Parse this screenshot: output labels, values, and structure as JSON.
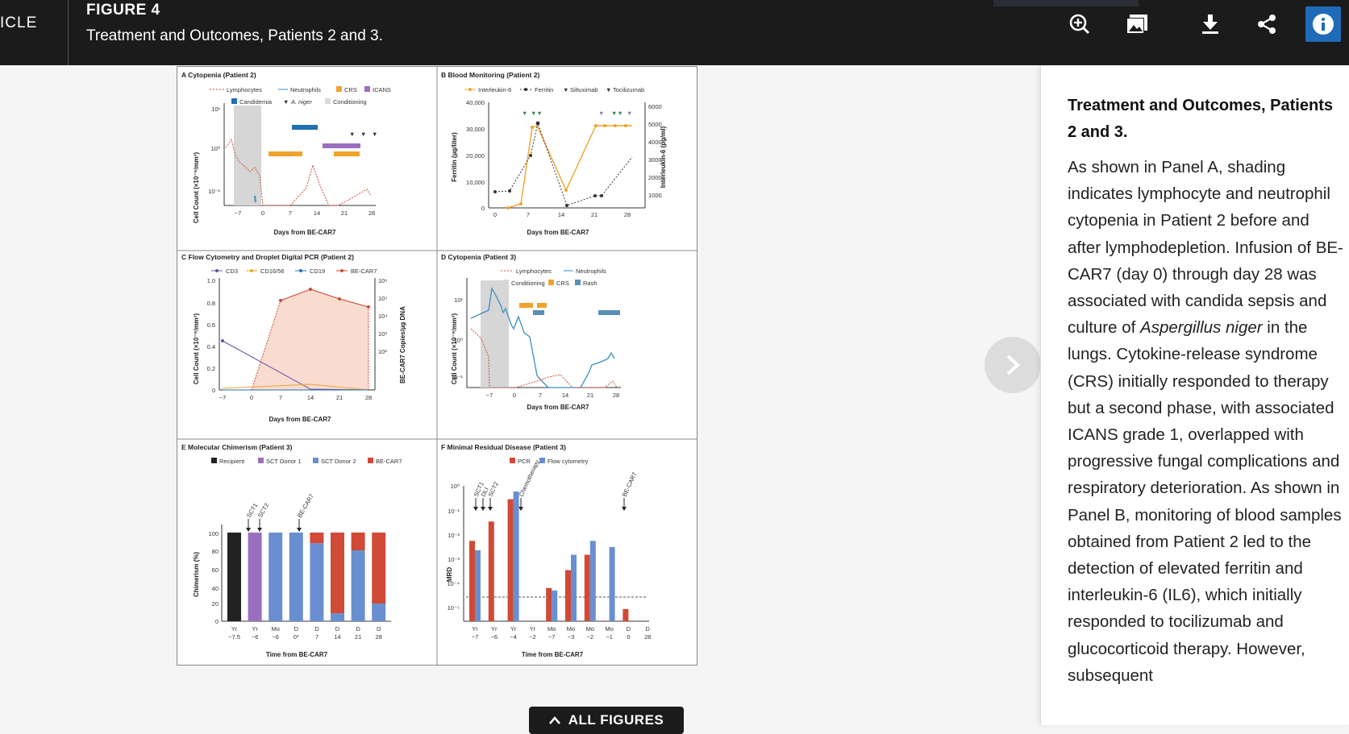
{
  "header": {
    "article_label": "ICLE",
    "figure_label": "FIGURE 4",
    "figure_title": "Treatment and Outcomes, Patients 2 and 3."
  },
  "toolbar": {
    "icons": [
      "zoom-in-icon",
      "image-gallery-icon",
      "download-icon",
      "share-icon",
      "info-icon"
    ]
  },
  "figure": {
    "panelA": {
      "title": "A  Cytopenia (Patient 2)",
      "legend": [
        "Lymphocytes",
        "Neutrophils",
        "CRS",
        "ICANS",
        "Candidemia",
        "A. niger",
        "Conditioning"
      ],
      "ylabel": "Cell Count (×10⁻⁹/mm³)",
      "xlabel": "Days from BE-CAR7",
      "xticks": [
        "−7",
        "0",
        "7",
        "14",
        "21",
        "28"
      ],
      "yticks": [
        "10¹",
        "10⁰",
        "10⁻¹"
      ]
    },
    "panelB": {
      "title": "B  Blood Monitoring (Patient 2)",
      "legend": [
        "Interleukin-6",
        "Ferritin",
        "Siltuximab",
        "Tocilizumab"
      ],
      "ylabel": "Ferritin (µg/liter)",
      "ylabel2": "Interleukin-6 (pg/ml)",
      "xlabel": "Days from BE-CAR7",
      "xticks": [
        "0",
        "7",
        "14",
        "21",
        "28"
      ],
      "yticks": [
        "40,000",
        "30,000",
        "20,000",
        "10,000",
        "0"
      ],
      "yticks2": [
        "6000",
        "5000",
        "4000",
        "3000",
        "2000",
        "1000"
      ]
    },
    "panelC": {
      "title": "C  Flow Cytometry and Droplet Digital PCR (Patient 2)",
      "legend": [
        "CD3",
        "CD16/56",
        "CD19",
        "BE-CAR7"
      ],
      "ylabel": "Cell Count (×10⁻⁹/mm³)",
      "ylabel2": "BE-CAR7 Copies/µg DNA",
      "xlabel": "Days from BE-CAR7",
      "xticks": [
        "−7",
        "0",
        "7",
        "14",
        "21",
        "28"
      ],
      "yticks": [
        "1.0",
        "0.8",
        "0.6",
        "0.4",
        "0.2",
        "0"
      ],
      "yticks2": [
        "10⁶",
        "10⁵",
        "10⁴",
        "10³",
        "10²"
      ]
    },
    "panelD": {
      "title": "D  Cytopenia (Patient 3)",
      "legend": [
        "Lymphocytes",
        "Neutrophils",
        "Conditioning",
        "CRS",
        "Rash"
      ],
      "ylabel": "Cell Count (×10⁻⁹/mm³)",
      "xlabel": "Days from BE-CAR7",
      "xticks": [
        "−7",
        "0",
        "7",
        "14",
        "21",
        "28"
      ],
      "yticks": [
        "10¹",
        "10⁰",
        "10⁻¹"
      ]
    },
    "panelE": {
      "title": "E  Molecular Chimerism (Patient 3)",
      "legend": [
        "Recipient",
        "SCT Donor 1",
        "SCT Donor 2",
        "BE-CAR7"
      ],
      "ylabel": "Chimerism (%)",
      "xlabel": "Time from BE-CAR7",
      "arrows": [
        "SCT1",
        "SCT2",
        "BE-CAR7"
      ],
      "yticks": [
        "100",
        "80",
        "60",
        "40",
        "20",
        "0"
      ],
      "xticks_top": [
        "Yr",
        "Yr",
        "Mo",
        "D",
        "D",
        "D",
        "D",
        "D"
      ],
      "xticks_bottom": [
        "−7.5",
        "−6",
        "−6",
        "0*",
        "7",
        "14",
        "21",
        "28"
      ]
    },
    "panelF": {
      "title": "F  Minimal Residual Disease (Patient 3)",
      "legend": [
        "PCR",
        "Flow cytometry"
      ],
      "ylabel": "MRD",
      "xlabel": "Time from BE-CAR7",
      "arrows": [
        "SCT1",
        "DLI",
        "SCT2",
        "Chemotherapy",
        "BE-CAR7"
      ],
      "yticks": [
        "10⁰",
        "10⁻¹",
        "10⁻²",
        "10⁻³",
        "10⁻⁴",
        "10⁻⁵"
      ],
      "xticks_top": [
        "Yr",
        "Yr",
        "Yr",
        "Yr",
        "Mo",
        "Mo",
        "Mo",
        "Mo",
        "D",
        "D"
      ],
      "xticks_bottom": [
        "−7",
        "−6",
        "−4",
        "−2",
        "−7",
        "−3",
        "−2",
        "−1",
        "0",
        "28"
      ]
    }
  },
  "chart_data": [
    {
      "type": "bar",
      "title": "E  Molecular Chimerism (Patient 3)",
      "xlabel": "Time from BE-CAR7",
      "ylabel": "Chimerism (%)",
      "ylim": [
        0,
        100
      ],
      "categories": [
        "Yr −7.5",
        "Yr −6",
        "Mo −6",
        "D 0*",
        "D 7",
        "D 14",
        "D 21",
        "D 28"
      ],
      "series": [
        {
          "name": "Recipient",
          "color": "#222222",
          "values": [
            100,
            0,
            0,
            0,
            0,
            0,
            0,
            0
          ]
        },
        {
          "name": "SCT Donor 1",
          "color": "#9b6fbf",
          "values": [
            0,
            100,
            0,
            0,
            0,
            0,
            0,
            0
          ]
        },
        {
          "name": "SCT Donor 2",
          "color": "#6a8fd0",
          "values": [
            0,
            0,
            100,
            100,
            88,
            9,
            80,
            20
          ]
        },
        {
          "name": "BE-CAR7",
          "color": "#d04a36",
          "values": [
            0,
            0,
            0,
            0,
            12,
            91,
            20,
            80
          ]
        }
      ]
    },
    {
      "type": "bar",
      "title": "F  Minimal Residual Disease (Patient 3)",
      "xlabel": "Time from BE-CAR7",
      "ylabel": "MRD",
      "log_scale": true,
      "ylim": [
        1e-05,
        1
      ],
      "categories": [
        "Yr −7",
        "Yr −6",
        "Yr −4",
        "Yr −2",
        "Mo −7",
        "Mo −3",
        "Mo −2",
        "Mo −1",
        "D 0",
        "D 28"
      ],
      "series": [
        {
          "name": "PCR",
          "color": "#d04a36",
          "values": [
            0.007,
            0.04,
            0.3,
            null,
            0.0001,
            0.0005,
            0.002,
            null,
            1.5e-05,
            null
          ]
        },
        {
          "name": "Flow cytometry",
          "color": "#6a8fd0",
          "values": [
            0.003,
            null,
            0.6,
            null,
            8e-05,
            0.002,
            0.007,
            0.004,
            null,
            null
          ]
        }
      ],
      "threshold": 0.0001
    }
  ],
  "navigation": {
    "all_figures_label": "ALL FIGURES"
  },
  "side_panel": {
    "heading": "Treatment and Outcomes, Patients 2 and 3.",
    "p1": "As shown in Panel A, shading indicates lymphocyte and neutrophil cytopenia in Patient 2 before and after lymphodepletion. Infusion of BE-CAR7 (day 0) through day 28 was associated with candida sepsis and culture of",
    "p1_italic": "Aspergillus niger",
    "p1_rest": "in the lungs. Cytokine-release syndrome (CRS) initially responded to therapy but a second phase, with associated ICANS grade 1, overlapped with progressive fungal complications and respiratory deterioration. As shown in Panel B, monitoring of blood samples obtained from Patient 2 led to the detection of elevated ferritin and interleukin-6 (IL6), which initially responded to tocilizumab and glucocorticoid therapy. However, subsequent"
  }
}
